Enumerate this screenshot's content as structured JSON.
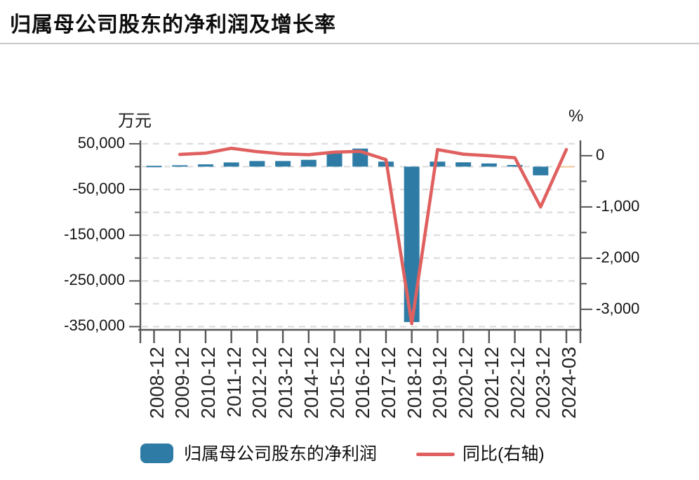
{
  "chart_data": {
    "type": "bar+line",
    "title": "归属母公司股东的净利润及增长率",
    "categories": [
      "2008-12",
      "2009-12",
      "2010-12",
      "2011-12",
      "2012-12",
      "2013-12",
      "2014-12",
      "2015-12",
      "2016-12",
      "2017-12",
      "2018-12",
      "2019-12",
      "2020-12",
      "2021-12",
      "2022-12",
      "2023-12",
      "2024-03"
    ],
    "series": [
      {
        "name": "归属母公司股东的净利润",
        "type": "bar",
        "yaxis": "left",
        "color": "#2E7CA6",
        "point_colors": {
          "16": "#F4C79A"
        },
        "values": [
          1800,
          3000,
          5000,
          9200,
          12300,
          12300,
          14900,
          29000,
          39500,
          11000,
          -340000,
          11000,
          9500,
          7000,
          3500,
          -19000,
          1200
        ]
      },
      {
        "name": "同比(右轴)",
        "type": "line",
        "yaxis": "right",
        "color": "#E06060",
        "values": [
          null,
          25,
          50,
          145,
          80,
          35,
          20,
          70,
          85,
          -75,
          -3280,
          120,
          30,
          0,
          -40,
          -1000,
          120
        ]
      }
    ],
    "left_axis": {
      "unit": "万元",
      "tick_values": [
        50000,
        -50000,
        -150000,
        -250000,
        -350000
      ],
      "minor_tick_values": [
        0,
        -100000,
        -200000,
        -300000
      ],
      "range": [
        -357000,
        57500
      ]
    },
    "right_axis": {
      "unit": "%",
      "tick_values": [
        0,
        -1000,
        -2000,
        -3000
      ],
      "minor_tick_values": [
        -500,
        -1500,
        -2500
      ],
      "range": [
        -3400,
        300
      ]
    },
    "grid": {
      "show": true,
      "interval_left": 50000,
      "style": "dashed"
    },
    "legend_position": "bottom",
    "colors": {
      "axis": "#555555",
      "gridline": "#dcdcdc",
      "divider": "#c9c9c9",
      "bar": "#2E7CA6",
      "bar_last": "#F4C79A",
      "line": "#E06060"
    }
  }
}
